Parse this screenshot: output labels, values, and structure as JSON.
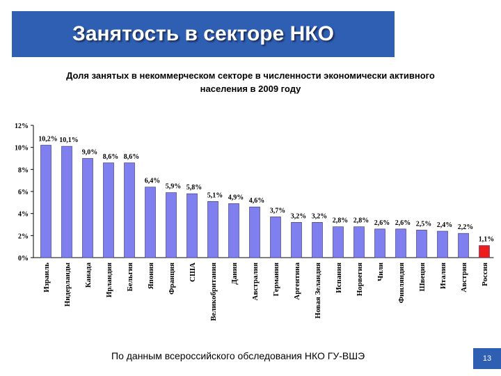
{
  "slide": {
    "title": "Занятость в секторе НКО",
    "subtitle_line1": "Доля занятых в некоммерческом секторе в численности экономически активного",
    "subtitle_line2": "населения в 2009 году",
    "source": "По данным всероссийского обследования НКО ГУ-ВШЭ",
    "page_number": "13"
  },
  "colors": {
    "title_bg": "#2f5fb3",
    "bar": "#7f7fef",
    "highlight": "#ee1c1c"
  },
  "chart_data": {
    "type": "bar",
    "categories": [
      "Израиль",
      "Нидерланды",
      "Канада",
      "Ирландия",
      "Бельгия",
      "Япония",
      "Франция",
      "США",
      "Великобритания",
      "Дания",
      "Австралия",
      "Германия",
      "Аргентина",
      "Новая Зеландия",
      "Испания",
      "Норвегия",
      "Чили",
      "Финляндия",
      "Швеция",
      "Италия",
      "Австрия",
      "Россия"
    ],
    "values": [
      10.2,
      10.1,
      9.0,
      8.6,
      8.6,
      6.4,
      5.9,
      5.8,
      5.1,
      4.9,
      4.6,
      3.7,
      3.2,
      3.2,
      2.8,
      2.8,
      2.6,
      2.6,
      2.5,
      2.4,
      2.2,
      1.1
    ],
    "labels": [
      "10,2%",
      "10,1%",
      "9,0%",
      "8,6%",
      "8,6%",
      "6,4%",
      "5,9%",
      "5,8%",
      "5,1%",
      "4,9%",
      "4,6%",
      "3,7%",
      "3,2%",
      "3,2%",
      "2,8%",
      "2,8%",
      "2,6%",
      "2,6%",
      "2,5%",
      "2,4%",
      "2,2%",
      "1,1%"
    ],
    "highlight_index": 21,
    "yticks": [
      "0%",
      "2%",
      "4%",
      "6%",
      "8%",
      "10%",
      "12%"
    ],
    "ylim": [
      0,
      12
    ],
    "grid": false
  }
}
